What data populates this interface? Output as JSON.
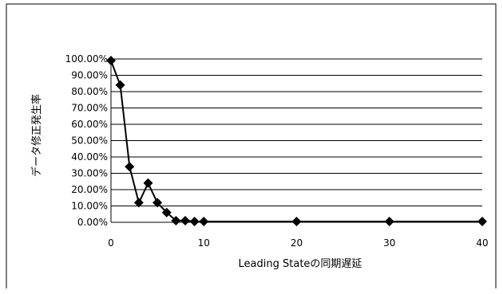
{
  "chart_data": {
    "type": "line",
    "xlabel": "Leading Stateの同期遅延",
    "ylabel": "データ修正発生率",
    "xlim": [
      0,
      40
    ],
    "ylim": [
      0,
      100
    ],
    "x_ticks": [
      "0",
      "10",
      "20",
      "30",
      "40"
    ],
    "y_ticks": [
      "0.00%",
      "10.00%",
      "20.00%",
      "30.00%",
      "40.00%",
      "50.00%",
      "60.00%",
      "70.00%",
      "80.00%",
      "90.00%",
      "100.00%"
    ],
    "grid": "horizontal",
    "marker": "diamond",
    "colors": {
      "line": "#000000",
      "grid": "#000000",
      "frame": "#000000"
    },
    "series": [
      {
        "x": [
          0,
          1,
          2,
          3,
          4,
          5,
          6,
          7,
          8,
          9,
          10,
          20,
          30,
          40
        ],
        "values": [
          99,
          84,
          34,
          12,
          24,
          12,
          6,
          1,
          1,
          0.5,
          0.5,
          0.5,
          0.5,
          0.5
        ]
      }
    ]
  }
}
